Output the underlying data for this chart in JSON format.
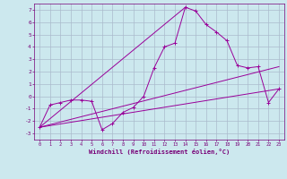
{
  "xlabel": "Windchill (Refroidissement éolien,°C)",
  "background_color": "#cce8ee",
  "grid_color": "#aabbcc",
  "line_color": "#990099",
  "xlim": [
    -0.5,
    23.5
  ],
  "ylim": [
    -3.5,
    7.5
  ],
  "yticks": [
    -3,
    -2,
    -1,
    0,
    1,
    2,
    3,
    4,
    5,
    6,
    7
  ],
  "xticks": [
    0,
    1,
    2,
    3,
    4,
    5,
    6,
    7,
    8,
    9,
    10,
    11,
    12,
    13,
    14,
    15,
    16,
    17,
    18,
    19,
    20,
    21,
    22,
    23
  ],
  "series_main": {
    "x": [
      0,
      1,
      2,
      3,
      4,
      5,
      6,
      7,
      8,
      9,
      10,
      11,
      12,
      13,
      14,
      15,
      16,
      17,
      18,
      19,
      20,
      21,
      22,
      23
    ],
    "y": [
      -2.5,
      -0.7,
      -0.5,
      -0.3,
      -0.3,
      -0.4,
      -2.7,
      -2.2,
      -1.3,
      -0.9,
      0.0,
      2.3,
      4.0,
      4.3,
      7.2,
      6.9,
      5.8,
      5.2,
      4.5,
      2.5,
      2.3,
      2.4,
      -0.5,
      0.6
    ]
  },
  "series_lines": [
    {
      "x": [
        0,
        23
      ],
      "y": [
        -2.5,
        0.6
      ]
    },
    {
      "x": [
        0,
        23
      ],
      "y": [
        -2.5,
        2.4
      ]
    },
    {
      "x": [
        0,
        14
      ],
      "y": [
        -2.5,
        7.2
      ]
    }
  ],
  "figsize": [
    3.2,
    2.0
  ],
  "dpi": 100
}
